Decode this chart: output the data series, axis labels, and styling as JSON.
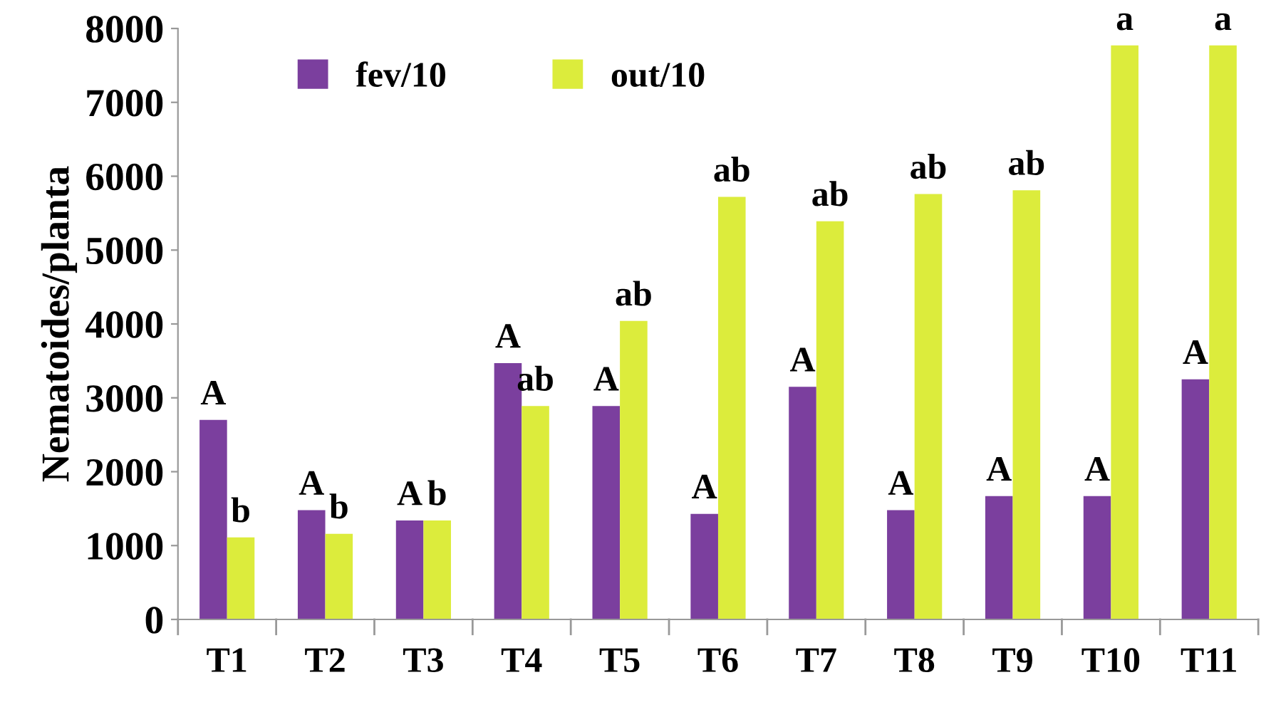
{
  "chart_data": {
    "type": "bar",
    "ylabel": "Nematoides/planta",
    "categories": [
      "T1",
      "T2",
      "T3",
      "T4",
      "T5",
      "T6",
      "T7",
      "T8",
      "T9",
      "T10",
      "T11"
    ],
    "series": [
      {
        "name": "fev/10",
        "color": "#7b3f9e",
        "values": [
          2700,
          1480,
          1340,
          3470,
          2890,
          1430,
          3150,
          1480,
          1670,
          1670,
          3250
        ]
      },
      {
        "name": "out/10",
        "color": "#dcec3c",
        "values": [
          1110,
          1160,
          1340,
          2890,
          4040,
          5720,
          5390,
          5760,
          5810,
          7770,
          7770
        ]
      }
    ],
    "ylim": [
      0,
      8000
    ],
    "yticks": [
      0,
      1000,
      2000,
      3000,
      4000,
      5000,
      6000,
      7000,
      8000
    ],
    "grid": false,
    "legend": "top",
    "annotations": [
      {
        "text": "A",
        "x": "T1",
        "y": 2700
      },
      {
        "text": "b",
        "x": "T1",
        "y": 1110
      },
      {
        "text": "A",
        "x": "T2",
        "y": 1480
      },
      {
        "text": "b",
        "x": "T2",
        "y": 1160
      },
      {
        "text": "A",
        "x": "T3",
        "y": 1340
      },
      {
        "text": "b",
        "x": "T3",
        "y": 1340
      },
      {
        "text": "A",
        "x": "T4",
        "y": 3470
      },
      {
        "text": "ab",
        "x": "T4",
        "y": 2890
      },
      {
        "text": "A",
        "x": "T5",
        "y": 2890
      },
      {
        "text": "ab",
        "x": "T5",
        "y": 4040
      },
      {
        "text": "A",
        "x": "T6",
        "y": 1430
      },
      {
        "text": "ab",
        "x": "T6",
        "y": 5720
      },
      {
        "text": "A",
        "x": "T7",
        "y": 3150
      },
      {
        "text": "ab",
        "x": "T7",
        "y": 5390
      },
      {
        "text": "A",
        "x": "T8",
        "y": 1480
      },
      {
        "text": "ab",
        "x": "T8",
        "y": 5760
      },
      {
        "text": "A",
        "x": "T9",
        "y": 1670
      },
      {
        "text": "ab",
        "x": "T9",
        "y": 5810
      },
      {
        "text": "A",
        "x": "T10",
        "y": 1670
      },
      {
        "text": "a",
        "x": "T10",
        "y": 7770
      },
      {
        "text": "A",
        "x": "T11",
        "y": 3250
      },
      {
        "text": "a",
        "x": "T11",
        "y": 7770
      }
    ]
  }
}
